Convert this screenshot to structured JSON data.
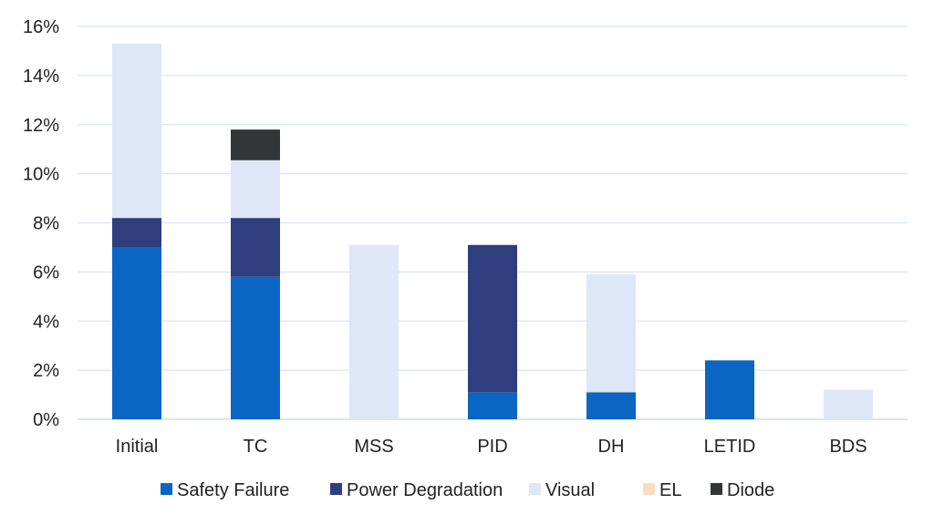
{
  "chart_data": {
    "type": "bar",
    "stacked": true,
    "title": "",
    "xlabel": "",
    "ylabel": "",
    "ylim": [
      0,
      16
    ],
    "yticks": [
      0,
      2,
      4,
      6,
      8,
      10,
      12,
      14,
      16
    ],
    "ytick_labels": [
      "0%",
      "2%",
      "4%",
      "6%",
      "8%",
      "10%",
      "12%",
      "14%",
      "16%"
    ],
    "grid": true,
    "legend_position": "bottom",
    "categories": [
      "Initial",
      "TC",
      "MSS",
      "PID",
      "DH",
      "LETID",
      "BDS"
    ],
    "series": [
      {
        "name": "Safety Failure",
        "color": "#0b66c3",
        "values": [
          7.0,
          5.8,
          0,
          1.1,
          1.1,
          2.4,
          0
        ]
      },
      {
        "name": "Power Degradation",
        "color": "#2e3e7e",
        "values": [
          1.2,
          2.4,
          0,
          6.0,
          0,
          0,
          0
        ]
      },
      {
        "name": "Visual",
        "color": "#dde7f7",
        "values": [
          7.1,
          2.35,
          7.1,
          0,
          4.8,
          0,
          1.2
        ]
      },
      {
        "name": "EL",
        "color": "#fbdcc0",
        "values": [
          0,
          0,
          0,
          0,
          0,
          0,
          0
        ]
      },
      {
        "name": "Diode",
        "color": "#333538",
        "values": [
          0,
          1.25,
          0,
          0,
          0,
          0,
          0
        ]
      }
    ]
  }
}
